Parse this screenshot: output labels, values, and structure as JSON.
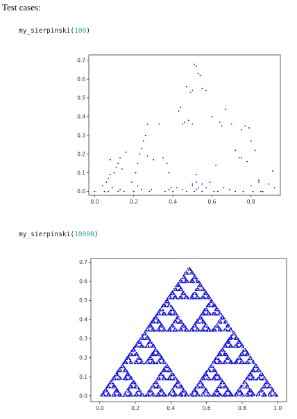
{
  "heading": "Test cases:",
  "cases": [
    {
      "fn": "my_sierpinski(",
      "arg": "100",
      "close": ")"
    },
    {
      "fn": "my_sierpinski(",
      "arg": "10000",
      "close": ")"
    }
  ],
  "colors": {
    "points": "#0000dd",
    "axes": "#333333",
    "tick_text": "#333333"
  },
  "chart_data": [
    {
      "type": "scatter",
      "title": "",
      "xlabel": "",
      "ylabel": "",
      "xlim": [
        -0.03,
        0.95
      ],
      "ylim": [
        -0.02,
        0.73
      ],
      "xticks": [
        0.0,
        0.2,
        0.4,
        0.6,
        0.8
      ],
      "yticks": [
        0.0,
        0.1,
        0.2,
        0.3,
        0.4,
        0.5,
        0.6,
        0.7
      ],
      "tick_labels_x": [
        "0.0",
        "0.2",
        "0.4",
        "0.6",
        "0.8"
      ],
      "tick_labels_y": [
        "0.0",
        "0.1",
        "0.2",
        "0.3",
        "0.4",
        "0.5",
        "0.6",
        "0.7"
      ],
      "grid": false,
      "series": [
        {
          "x": [
            0.0,
            0.04,
            0.06,
            0.07,
            0.08,
            0.1,
            0.11,
            0.12,
            0.13,
            0.14,
            0.05,
            0.09,
            0.13,
            0.15,
            0.19,
            0.21,
            0.22,
            0.23,
            0.24,
            0.25,
            0.26,
            0.27,
            0.28,
            0.29,
            0.2,
            0.22,
            0.24,
            0.3,
            0.33,
            0.35,
            0.37,
            0.38,
            0.39,
            0.36,
            0.38,
            0.4,
            0.42,
            0.43,
            0.44,
            0.45,
            0.46,
            0.47,
            0.48,
            0.5,
            0.51,
            0.52,
            0.53,
            0.54,
            0.55,
            0.57,
            0.49,
            0.5,
            0.51,
            0.52,
            0.53,
            0.5,
            0.52,
            0.55,
            0.45,
            0.47,
            0.5,
            0.52,
            0.6,
            0.62,
            0.64,
            0.65,
            0.67,
            0.7,
            0.72,
            0.74,
            0.77,
            0.79,
            0.8,
            0.82,
            0.84,
            0.63,
            0.66,
            0.69,
            0.72,
            0.75,
            0.78,
            0.8,
            0.81,
            0.55,
            0.57,
            0.59,
            0.61,
            0.86,
            0.89,
            0.91,
            0.92,
            0.75,
            0.76,
            0.84,
            0.85,
            0.07,
            0.12,
            0.27,
            0.08,
            0.16
          ],
          "y": [
            0.0,
            0.03,
            0.05,
            0.07,
            0.09,
            0.1,
            0.13,
            0.15,
            0.18,
            0.12,
            0.0,
            0.02,
            0.01,
            0.0,
            0.05,
            0.1,
            0.15,
            0.2,
            0.23,
            0.27,
            0.3,
            0.36,
            0.0,
            0.01,
            0.0,
            0.03,
            0.01,
            0.17,
            0.36,
            0.18,
            0.15,
            0.1,
            0.02,
            0.0,
            0.01,
            0.0,
            0.02,
            0.43,
            0.45,
            0.36,
            0.37,
            0.56,
            0.38,
            0.36,
            0.68,
            0.67,
            0.63,
            0.62,
            0.55,
            0.54,
            0.53,
            0.54,
            0.0,
            0.01,
            0.02,
            0.03,
            0.05,
            0.04,
            0.01,
            0.0,
            0.04,
            0.09,
            0.4,
            0.14,
            0.37,
            0.35,
            0.44,
            0.36,
            0.22,
            0.18,
            0.35,
            0.34,
            0.27,
            0.22,
            0.05,
            0.0,
            0.02,
            0.01,
            0.0,
            0.18,
            0.16,
            0.03,
            0.0,
            0.0,
            0.02,
            0.05,
            0.0,
            0.0,
            0.04,
            0.11,
            0.02,
            0.33,
            0.0,
            0.06,
            0.0,
            0.0,
            0.0,
            0.19,
            0.17,
            0.21
          ]
        }
      ]
    },
    {
      "type": "scatter",
      "title": "",
      "xlabel": "",
      "ylabel": "",
      "xlim": [
        -0.05,
        1.05
      ],
      "ylim": [
        -0.03,
        0.72
      ],
      "xticks": [
        0.0,
        0.2,
        0.4,
        0.6,
        0.8,
        1.0
      ],
      "yticks": [
        0.0,
        0.1,
        0.2,
        0.3,
        0.4,
        0.5,
        0.6,
        0.7
      ],
      "tick_labels_x": [
        "0.0",
        "0.2",
        "0.4",
        "0.6",
        "0.8",
        "1.0"
      ],
      "tick_labels_y": [
        "0.0",
        "0.1",
        "0.2",
        "0.3",
        "0.4",
        "0.5",
        "0.6",
        "0.7"
      ],
      "grid": false,
      "triangle_vertices": [
        [
          0.0,
          0.0
        ],
        [
          1.0,
          0.0
        ],
        [
          0.5,
          0.68
        ]
      ],
      "n_points": 10000
    }
  ]
}
